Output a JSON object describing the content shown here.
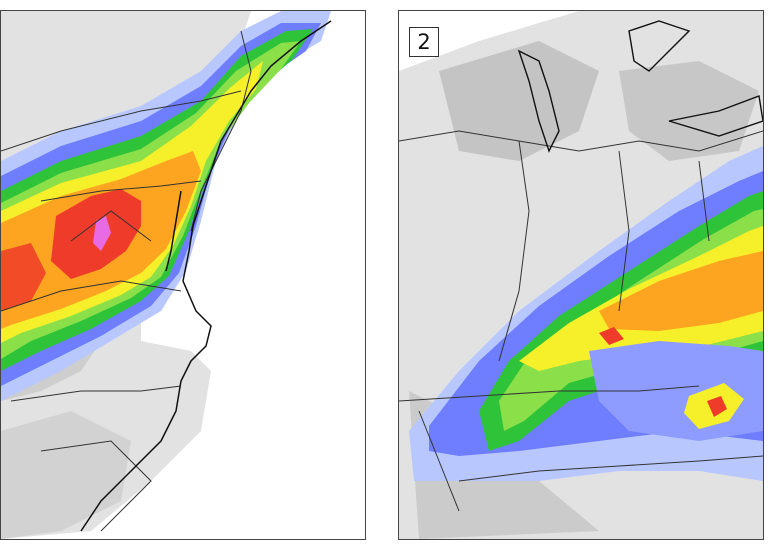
{
  "panels": [
    {
      "id": "left",
      "label": ""
    },
    {
      "id": "right",
      "label": "2"
    }
  ],
  "colors": {
    "background": "#ffffff",
    "gray_light": "#d9d9d9",
    "gray_mid": "#bdbdbd",
    "blue_light": "#b8c8ff",
    "blue": "#6f7dff",
    "green": "#2fc33a",
    "green_light": "#8be04a",
    "yellow": "#f6f02b",
    "orange": "#fda520",
    "red": "#ef3b2a",
    "magenta": "#e96be3",
    "border_lines": "#333333"
  }
}
